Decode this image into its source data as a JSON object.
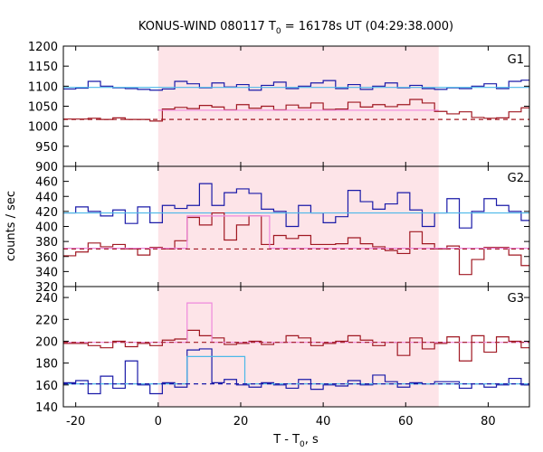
{
  "chart_data": {
    "type": "line",
    "title": "KONUS-WIND 080117 T",
    "title_sub": "0",
    "title_rest": " = 16178s UT (04:29:38.000)",
    "xlabel": "T - T",
    "xlabel_sub": "0",
    "xlabel_rest": ", s",
    "ylabel": "counts / sec",
    "xlim": [
      -23,
      90
    ],
    "xticks": [
      -20,
      0,
      20,
      40,
      60,
      80
    ],
    "xtick_labels": [
      "-20",
      "0",
      "20",
      "40",
      "60",
      "80"
    ],
    "shaded_interval": [
      0,
      68
    ],
    "colors": {
      "shade": "#fde4e8",
      "red_hist": "#a01822",
      "red_bg": "#a01822",
      "pink_fit": "#ee88dd",
      "blue_hist": "#1a1aa8",
      "cyan_fit": "#4cb8e8",
      "blue_bg": "#1a1aa8"
    },
    "panels": [
      {
        "label": "G1",
        "ylim": [
          900,
          1200
        ],
        "yticks": [
          900,
          950,
          1000,
          1050,
          1100,
          1150,
          1200
        ],
        "ytick_labels": [
          "900",
          "950",
          "1000",
          "1050",
          "1100",
          "1150",
          "1200"
        ],
        "series": [
          {
            "color_key": "blue_hist",
            "style": "step",
            "x": [
              -23,
              -20,
              -17,
              -14,
              -11,
              -8,
              -5,
              -2,
              1,
              4,
              7,
              10,
              13,
              16,
              19,
              22,
              25,
              28,
              31,
              34,
              37,
              40,
              43,
              46,
              49,
              52,
              55,
              58,
              61,
              64,
              67,
              70,
              73,
              76,
              79,
              82,
              85,
              88
            ],
            "y": [
              1093,
              1095,
              1112,
              1100,
              1096,
              1094,
              1092,
              1090,
              1093,
              1112,
              1106,
              1096,
              1108,
              1098,
              1104,
              1090,
              1102,
              1110,
              1094,
              1100,
              1108,
              1114,
              1094,
              1104,
              1092,
              1100,
              1108,
              1096,
              1102,
              1094,
              1092,
              1096,
              1094,
              1100,
              1106,
              1094,
              1112,
              1115
            ]
          },
          {
            "color_key": "cyan_fit",
            "style": "line",
            "x": [
              -23,
              90
            ],
            "y": [
              1097,
              1097
            ]
          },
          {
            "color_key": "red_hist",
            "style": "step",
            "x": [
              -23,
              -20,
              -17,
              -14,
              -11,
              -8,
              -5,
              -2,
              1,
              4,
              7,
              10,
              13,
              16,
              19,
              22,
              25,
              28,
              31,
              34,
              37,
              40,
              43,
              46,
              49,
              52,
              55,
              58,
              61,
              64,
              67,
              70,
              73,
              76,
              79,
              82,
              85,
              88
            ],
            "y": [
              1018,
              1018,
              1020,
              1017,
              1021,
              1017,
              1017,
              1013,
              1043,
              1047,
              1044,
              1052,
              1048,
              1041,
              1054,
              1045,
              1050,
              1041,
              1053,
              1046,
              1058,
              1042,
              1043,
              1060,
              1048,
              1054,
              1049,
              1054,
              1067,
              1058,
              1037,
              1031,
              1036,
              1022,
              1020,
              1021,
              1036,
              1046
            ]
          },
          {
            "color_key": "pink_fit",
            "style": "step",
            "x": [
              0,
              68
            ],
            "y": [
              1040,
              1040
            ]
          },
          {
            "color_key": "red_bg",
            "style": "dash",
            "x": [
              -23,
              90
            ],
            "y": [
              1017,
              1017
            ]
          }
        ]
      },
      {
        "label": "G2",
        "ylim": [
          320,
          480
        ],
        "yticks": [
          320,
          340,
          360,
          380,
          400,
          420,
          440,
          460
        ],
        "ytick_labels": [
          "320",
          "340",
          "360",
          "380",
          "400",
          "420",
          "440",
          "460"
        ],
        "series": [
          {
            "color_key": "blue_hist",
            "style": "step",
            "x": [
              -23,
              -20,
              -17,
              -14,
              -11,
              -8,
              -5,
              -2,
              1,
              4,
              7,
              10,
              13,
              16,
              19,
              22,
              25,
              28,
              31,
              34,
              37,
              40,
              43,
              46,
              49,
              52,
              55,
              58,
              61,
              64,
              67,
              70,
              73,
              76,
              79,
              82,
              85,
              88
            ],
            "y": [
              418,
              426,
              420,
              414,
              422,
              404,
              426,
              405,
              428,
              424,
              428,
              457,
              428,
              445,
              450,
              444,
              423,
              420,
              400,
              428,
              418,
              405,
              413,
              448,
              433,
              423,
              430,
              445,
              422,
              400,
              418,
              437,
              398,
              420,
              437,
              428,
              420,
              408
            ]
          },
          {
            "color_key": "cyan_fit",
            "style": "line",
            "x": [
              -23,
              90
            ],
            "y": [
              418,
              418
            ]
          },
          {
            "color_key": "red_hist",
            "style": "step",
            "x": [
              -23,
              -20,
              -17,
              -14,
              -11,
              -8,
              -5,
              -2,
              1,
              4,
              7,
              10,
              13,
              16,
              19,
              22,
              25,
              28,
              31,
              34,
              37,
              40,
              43,
              46,
              49,
              52,
              55,
              58,
              61,
              64,
              67,
              70,
              73,
              76,
              79,
              82,
              85,
              88
            ],
            "y": [
              361,
              366,
              378,
              373,
              376,
              370,
              362,
              372,
              370,
              381,
              412,
              402,
              418,
              382,
              402,
              414,
              376,
              388,
              384,
              388,
              376,
              376,
              377,
              385,
              377,
              373,
              368,
              364,
              393,
              377,
              370,
              374,
              336,
              356,
              372,
              372,
              362,
              348
            ]
          },
          {
            "color_key": "pink_fit",
            "style": "step",
            "x": [
              -23,
              7,
              7,
              27,
              27,
              90
            ],
            "y": [
              371,
              371,
              414,
              414,
              371,
              371
            ]
          },
          {
            "color_key": "red_bg",
            "style": "dash",
            "x": [
              -23,
              90
            ],
            "y": [
              370,
              370
            ]
          }
        ]
      },
      {
        "label": "G3",
        "ylim": [
          140,
          250
        ],
        "yticks": [
          140,
          160,
          180,
          200,
          220,
          240
        ],
        "ytick_labels": [
          "140",
          "160",
          "180",
          "200",
          "220",
          "240"
        ],
        "series": [
          {
            "color_key": "red_hist",
            "style": "step",
            "x": [
              -23,
              -20,
              -17,
              -14,
              -11,
              -8,
              -5,
              -2,
              1,
              4,
              7,
              10,
              13,
              16,
              19,
              22,
              25,
              28,
              31,
              34,
              37,
              40,
              43,
              46,
              49,
              52,
              55,
              58,
              61,
              64,
              67,
              70,
              73,
              76,
              79,
              82,
              85,
              88
            ],
            "y": [
              198,
              198,
              196,
              194,
              200,
              195,
              198,
              196,
              201,
              202,
              210,
              205,
              203,
              197,
              198,
              200,
              197,
              199,
              205,
              203,
              196,
              198,
              200,
              205,
              201,
              196,
              199,
              187,
              203,
              193,
              198,
              204,
              182,
              205,
              190,
              204,
              200,
              194
            ]
          },
          {
            "color_key": "pink_fit",
            "style": "step",
            "x": [
              -23,
              7,
              7,
              13,
              13,
              90
            ],
            "y": [
              199,
              199,
              235,
              235,
              199,
              199
            ]
          },
          {
            "color_key": "red_bg",
            "style": "dash",
            "x": [
              -23,
              90
            ],
            "y": [
              199,
              199
            ]
          },
          {
            "color_key": "blue_hist",
            "style": "step",
            "x": [
              -23,
              -20,
              -17,
              -14,
              -11,
              -8,
              -5,
              -2,
              1,
              4,
              7,
              10,
              13,
              16,
              19,
              22,
              25,
              28,
              31,
              34,
              37,
              40,
              43,
              46,
              49,
              52,
              55,
              58,
              61,
              64,
              67,
              70,
              73,
              76,
              79,
              82,
              85,
              88
            ],
            "y": [
              162,
              164,
              152,
              168,
              157,
              182,
              160,
              152,
              162,
              158,
              192,
              193,
              162,
              165,
              160,
              158,
              162,
              160,
              157,
              165,
              156,
              160,
              159,
              164,
              160,
              169,
              163,
              158,
              162,
              161,
              163,
              163,
              157,
              161,
              158,
              160,
              166,
              160
            ]
          },
          {
            "color_key": "cyan_fit",
            "style": "step",
            "x": [
              -23,
              7,
              7,
              21,
              21,
              90
            ],
            "y": [
              161,
              161,
              186,
              186,
              161,
              161
            ]
          },
          {
            "color_key": "blue_bg",
            "style": "dash",
            "x": [
              -23,
              90
            ],
            "y": [
              161,
              161
            ]
          }
        ]
      }
    ]
  }
}
